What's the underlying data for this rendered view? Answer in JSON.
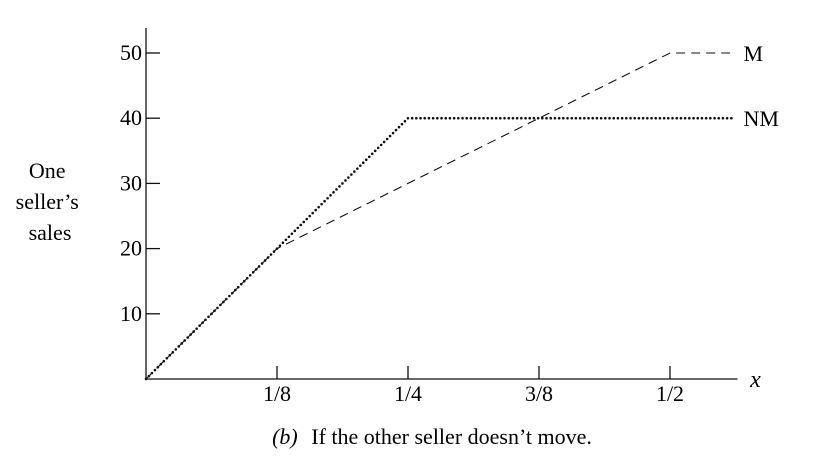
{
  "chart_data": {
    "type": "line",
    "caption_prefix": "(b)",
    "caption_text": "If the other seller doesn’t move.",
    "ylabel_lines": [
      "One",
      "seller’s",
      "sales"
    ],
    "xlabel": "x",
    "xlim": [
      0,
      0.5625
    ],
    "ylim": [
      0,
      55
    ],
    "x_ticks": [
      {
        "value": 0.125,
        "label": "1/8"
      },
      {
        "value": 0.25,
        "label": "1/4"
      },
      {
        "value": 0.375,
        "label": "3/8"
      },
      {
        "value": 0.5,
        "label": "1/2"
      }
    ],
    "y_ticks": [
      {
        "value": 10,
        "label": "10"
      },
      {
        "value": 20,
        "label": "20"
      },
      {
        "value": 30,
        "label": "30"
      },
      {
        "value": 40,
        "label": "40"
      },
      {
        "value": 50,
        "label": "50"
      }
    ],
    "series": [
      {
        "name": "M",
        "style": "dashed",
        "x": [
          0,
          0.125,
          0.5
        ],
        "y": [
          0,
          20,
          50
        ],
        "extend_to_x": 0.5625
      },
      {
        "name": "NM",
        "style": "dotted",
        "x": [
          0,
          0.25
        ],
        "y": [
          0,
          40
        ],
        "extend_to_x": 0.5625
      }
    ]
  }
}
